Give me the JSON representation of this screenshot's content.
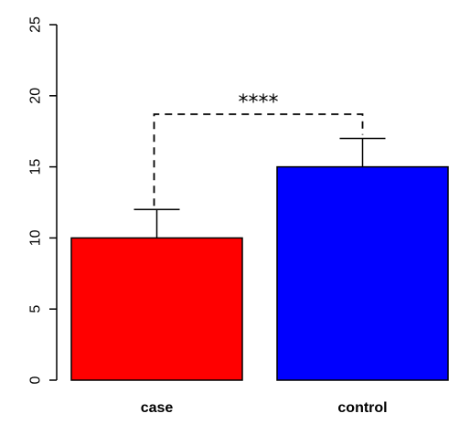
{
  "chart_data": {
    "type": "bar",
    "categories": [
      "case",
      "control"
    ],
    "values": [
      10,
      15
    ],
    "error_upper": [
      12,
      17
    ],
    "colors": [
      "#ff0000",
      "#0000ff"
    ],
    "ylim": [
      0,
      25
    ],
    "yticks": [
      0,
      5,
      10,
      15,
      20,
      25
    ],
    "title": "",
    "xlabel": "",
    "ylabel": "",
    "significance": {
      "label": "****",
      "bracket_y": 18.7,
      "between": [
        "case",
        "control"
      ]
    },
    "grid": false,
    "legend": "none"
  }
}
